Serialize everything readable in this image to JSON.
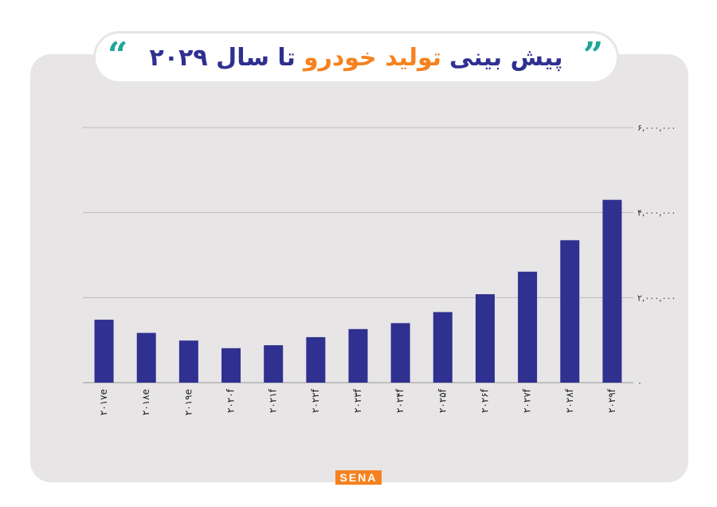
{
  "title": {
    "part1": "پیش بینی",
    "part2": "تولید خودرو",
    "part3": "تا سال ۲۰۲۹"
  },
  "quote_mark_left": "“",
  "quote_mark_right": "”",
  "logo_text": "SENA",
  "colors": {
    "bar": "#2f3090",
    "title_accent": "#f5821f",
    "quote": "#1fa698",
    "gridline": "#bdbbbc",
    "card": "#e7e5e6"
  },
  "chart_data": {
    "type": "bar",
    "categories": [
      "۲۰۱۷e",
      "۲۰۱۸e",
      "۲۰۱۹e",
      "۲۰۲۰f",
      "۲۰۲۱f",
      "۲۰۲۲f",
      "۲۰۲۳f",
      "۲۰۲۴f",
      "۲۰۲۵f",
      "۲۰۲۶f",
      "۲۰۲۷f",
      "۲۰۲۸f",
      "۲۰۲۹f"
    ],
    "values": [
      1480000,
      1170000,
      990000,
      810000,
      880000,
      1070000,
      1260000,
      1400000,
      1660000,
      2080000,
      2610000,
      3350000,
      4300000
    ],
    "yticks": [
      0,
      2000000,
      4000000,
      6000000
    ],
    "ytick_labels": [
      "۰",
      "۲,۰۰۰,۰۰۰",
      "۴,۰۰۰,۰۰۰",
      "۶,۰۰۰,۰۰۰"
    ],
    "ylim": [
      0,
      6000000
    ],
    "y_axis_side": "right",
    "grid": true,
    "xlabel": "",
    "ylabel": ""
  }
}
